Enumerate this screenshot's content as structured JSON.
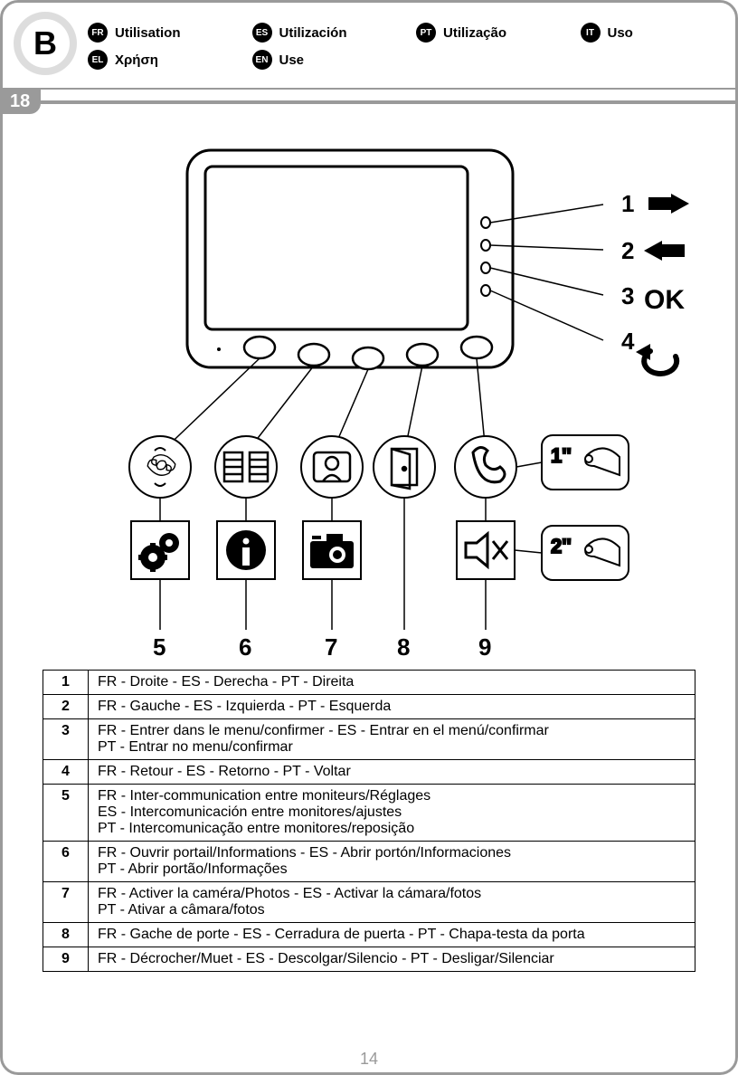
{
  "section_letter": "B",
  "header_langs": [
    {
      "code": "FR",
      "label": "Utilisation"
    },
    {
      "code": "ES",
      "label": "Utilización"
    },
    {
      "code": "PT",
      "label": "Utilização"
    },
    {
      "code": "IT",
      "label": "Uso"
    },
    {
      "code": "EL",
      "label": "Χρήση"
    },
    {
      "code": "EN",
      "label": "Use"
    }
  ],
  "step_number": "18",
  "side_labels": {
    "1": "1",
    "2": "2",
    "3": "3",
    "4": "4",
    "ok": "OK"
  },
  "press_labels": {
    "one": "1''",
    "two": "2''"
  },
  "bottom_nums": {
    "5": "5",
    "6": "6",
    "7": "7",
    "8": "8",
    "9": "9"
  },
  "legend_rows": [
    {
      "n": "1",
      "text": "FR - Droite  - ES - Derecha  - PT - Direita"
    },
    {
      "n": "2",
      "text": "FR - Gauche  - ES - Izquierda  - PT - Esquerda"
    },
    {
      "n": "3",
      "text": "FR - Entrer dans le menu/confirmer - ES - Entrar en el menú/confirmar\nPT - Entrar no menu/confirmar"
    },
    {
      "n": "4",
      "text": "FR - Retour - ES - Retorno - PT - Voltar"
    },
    {
      "n": "5",
      "text": "FR - Inter-communication entre moniteurs/Réglages\nES - Intercomunicación entre monitores/ajustes\nPT - Intercomunicação entre monitores/reposição"
    },
    {
      "n": "6",
      "text": "FR - Ouvrir portail/Informations - ES - Abrir portón/Informaciones\nPT - Abrir portão/Informações"
    },
    {
      "n": "7",
      "text": "FR - Activer la caméra/Photos - ES - Activar la cámara/fotos\nPT - Ativar a câmara/fotos"
    },
    {
      "n": "8",
      "text": "FR - Gache de porte - ES - Cerradura de puerta - PT - Chapa-testa da porta"
    },
    {
      "n": "9",
      "text": "FR - Décrocher/Muet - ES - Descolgar/Silencio - PT - Desligar/Silenciar"
    }
  ],
  "page_number": "14",
  "colors": {
    "accent": "#9a9a9a",
    "black": "#000"
  }
}
